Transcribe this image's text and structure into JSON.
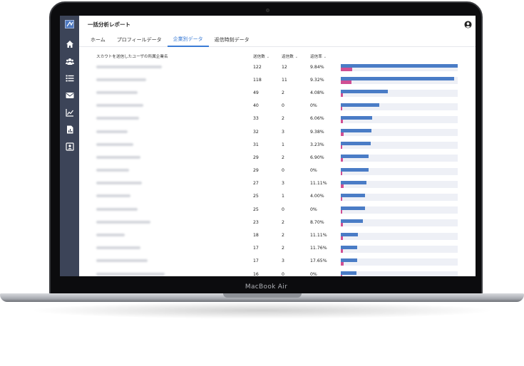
{
  "header": {
    "title": "一括分析レポート"
  },
  "tabs": [
    {
      "label": "ホーム",
      "active": false
    },
    {
      "label": "プロフィールデータ",
      "active": false
    },
    {
      "label": "企業別データ",
      "active": true
    },
    {
      "label": "返信時刻データ",
      "active": false
    }
  ],
  "table": {
    "columns": {
      "company": "スカウトを送信したユーザの所属企業名",
      "sent": "送信数",
      "reply": "返信数",
      "rate": "返信率"
    },
    "max_sent": 122,
    "rows": [
      {
        "sent": 122,
        "reply": 12,
        "rate": "9.84%"
      },
      {
        "sent": 118,
        "reply": 11,
        "rate": "9.32%"
      },
      {
        "sent": 49,
        "reply": 2,
        "rate": "4.08%"
      },
      {
        "sent": 40,
        "reply": 0,
        "rate": "0%"
      },
      {
        "sent": 33,
        "reply": 2,
        "rate": "6.06%"
      },
      {
        "sent": 32,
        "reply": 3,
        "rate": "9.38%"
      },
      {
        "sent": 31,
        "reply": 1,
        "rate": "3.23%"
      },
      {
        "sent": 29,
        "reply": 2,
        "rate": "6.90%"
      },
      {
        "sent": 29,
        "reply": 0,
        "rate": "0%"
      },
      {
        "sent": 27,
        "reply": 3,
        "rate": "11.11%"
      },
      {
        "sent": 25,
        "reply": 1,
        "rate": "4.00%"
      },
      {
        "sent": 25,
        "reply": 0,
        "rate": "0%"
      },
      {
        "sent": 23,
        "reply": 2,
        "rate": "8.70%"
      },
      {
        "sent": 18,
        "reply": 2,
        "rate": "11.11%"
      },
      {
        "sent": 17,
        "reply": 2,
        "rate": "11.76%"
      },
      {
        "sent": 17,
        "reply": 3,
        "rate": "17.65%"
      },
      {
        "sent": 16,
        "reply": 0,
        "rate": "0%"
      }
    ]
  },
  "device": {
    "label": "MacBook Air"
  },
  "colors": {
    "sidebar": "#3c4458",
    "accent": "#3a7bd5",
    "bar_sent": "#4a7cc6",
    "bar_reply": "#d04f93"
  },
  "icons": [
    "logo-icon",
    "home-icon",
    "users-icon",
    "list-icon",
    "mail-icon",
    "line-chart-icon",
    "bar-report-icon",
    "profile-card-icon",
    "user-circle-icon"
  ]
}
